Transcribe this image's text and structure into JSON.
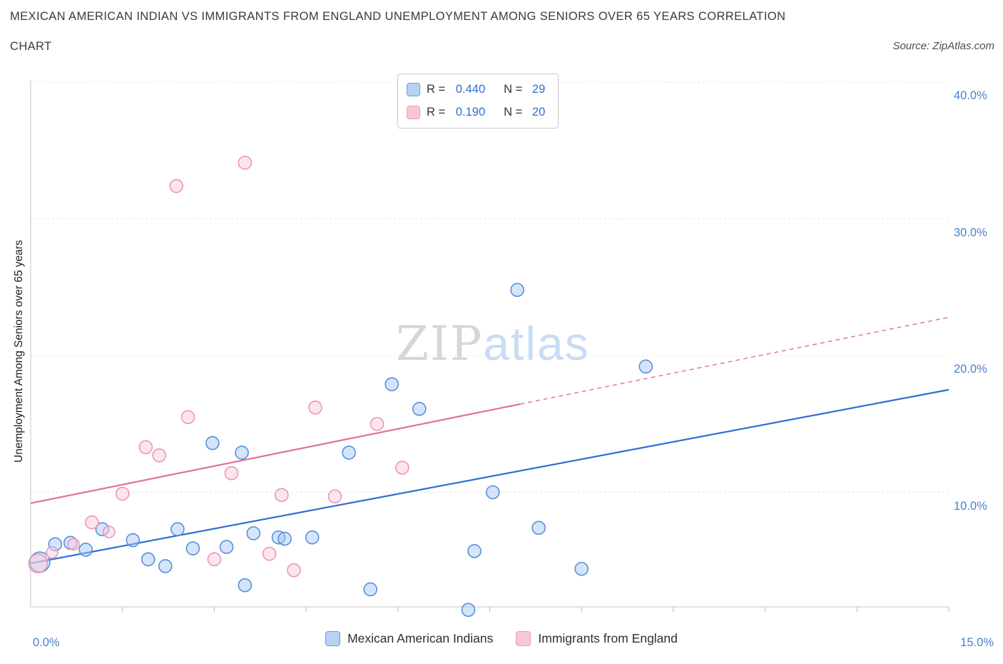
{
  "header": {
    "title_line1": "MEXICAN AMERICAN INDIAN VS IMMIGRANTS FROM ENGLAND UNEMPLOYMENT AMONG SENIORS OVER 65 YEARS CORRELATION",
    "title_line2": "CHART",
    "source": "Source: ZipAtlas.com"
  },
  "watermark": {
    "zip": "ZIP",
    "atlas": "atlas"
  },
  "axes": {
    "y_label": "Unemployment Among Seniors over 65 years",
    "y_ticks": [
      {
        "value": 40,
        "label": "40.0%"
      },
      {
        "value": 30,
        "label": "30.0%"
      },
      {
        "value": 20,
        "label": "20.0%"
      },
      {
        "value": 10,
        "label": "10.0%"
      }
    ],
    "x_min_label": "0.0%",
    "x_max_label": "15.0%"
  },
  "legend_box": {
    "value_color": "#2d6fd1",
    "rows": [
      {
        "r_label": "R =",
        "r_value": "0.440",
        "n_label": "N =",
        "n_value": "29",
        "swatch_fill": "#b6d2f4",
        "swatch_border": "#6b9ae0"
      },
      {
        "r_label": "R =",
        "r_value": "0.190",
        "n_label": "N =",
        "n_value": "20",
        "swatch_fill": "#f9c6d8",
        "swatch_border": "#ee9cba"
      }
    ]
  },
  "bottom_legend": {
    "items": [
      {
        "label": "Mexican American Indians",
        "swatch_fill": "#b6d2f4",
        "swatch_border": "#6b9ae0"
      },
      {
        "label": "Immigrants from England",
        "swatch_fill": "#f9c6d8",
        "swatch_border": "#ee9cba"
      }
    ]
  },
  "chart_data": {
    "type": "scatter",
    "title": "Mexican American Indian vs Immigrants from England Unemployment Among Seniors over 65 years Correlation Chart",
    "xlabel": "",
    "ylabel": "Unemployment Among Seniors over 65 years",
    "x_unit": "%",
    "y_unit": "%",
    "xlim": [
      0,
      15
    ],
    "ylim": [
      0,
      40
    ],
    "grid": "horizontal-dotted",
    "legend_position": "top-center",
    "series": [
      {
        "id": "blue",
        "name": "Mexican American Indians",
        "R": 0.44,
        "N": 29,
        "stroke": "#5b8fd6",
        "fill": "rgba(160,198,247,0.45)",
        "line_color": "#2e6fd0",
        "trend": {
          "start": [
            0,
            4.8
          ],
          "end": [
            15,
            17.5
          ]
        },
        "points": [
          [
            0.15,
            4.9,
            14
          ],
          [
            0.4,
            6.2,
            9
          ],
          [
            0.65,
            6.3,
            9
          ],
          [
            0.9,
            5.8,
            9
          ],
          [
            1.17,
            7.3,
            9
          ],
          [
            1.67,
            6.5,
            9
          ],
          [
            1.92,
            5.1,
            9
          ],
          [
            2.2,
            4.6,
            9
          ],
          [
            2.4,
            7.3,
            9
          ],
          [
            2.65,
            5.9,
            9
          ],
          [
            2.97,
            13.6,
            9
          ],
          [
            3.2,
            6.0,
            9
          ],
          [
            3.45,
            12.9,
            9
          ],
          [
            3.5,
            3.2,
            9
          ],
          [
            3.64,
            7.0,
            9
          ],
          [
            4.05,
            6.7,
            9
          ],
          [
            4.15,
            6.6,
            9
          ],
          [
            4.6,
            6.7,
            9
          ],
          [
            5.2,
            12.9,
            9
          ],
          [
            5.55,
            2.9,
            9
          ],
          [
            5.9,
            17.9,
            9
          ],
          [
            6.35,
            16.1,
            9
          ],
          [
            7.15,
            1.4,
            9
          ],
          [
            7.25,
            5.7,
            9
          ],
          [
            7.55,
            10.0,
            9
          ],
          [
            7.95,
            24.8,
            9
          ],
          [
            8.3,
            7.4,
            9
          ],
          [
            9.0,
            4.4,
            9
          ],
          [
            10.05,
            19.2,
            9
          ]
        ]
      },
      {
        "id": "pink",
        "name": "Immigrants from England",
        "R": 0.19,
        "N": 20,
        "stroke": "#ef94b6",
        "fill": "rgba(250,205,221,0.5)",
        "line_color": "#e0719a",
        "trend": {
          "start": [
            0,
            9.2
          ],
          "end": [
            15,
            22.8
          ],
          "solid_until": 8
        },
        "points": [
          [
            0.12,
            4.8,
            13
          ],
          [
            0.35,
            5.6,
            8
          ],
          [
            0.7,
            6.2,
            8
          ],
          [
            1.0,
            7.8,
            9
          ],
          [
            1.28,
            7.1,
            8
          ],
          [
            1.5,
            9.9,
            9
          ],
          [
            1.88,
            13.3,
            9
          ],
          [
            2.1,
            12.7,
            9
          ],
          [
            2.38,
            32.4,
            9
          ],
          [
            2.57,
            15.5,
            9
          ],
          [
            3.0,
            5.1,
            9
          ],
          [
            3.28,
            11.4,
            9
          ],
          [
            3.5,
            34.1,
            9
          ],
          [
            3.9,
            5.5,
            9
          ],
          [
            4.1,
            9.8,
            9
          ],
          [
            4.3,
            4.3,
            9
          ],
          [
            4.65,
            16.2,
            9
          ],
          [
            4.97,
            9.7,
            9
          ],
          [
            5.66,
            15.0,
            9
          ],
          [
            6.07,
            11.8,
            9
          ]
        ]
      }
    ]
  }
}
